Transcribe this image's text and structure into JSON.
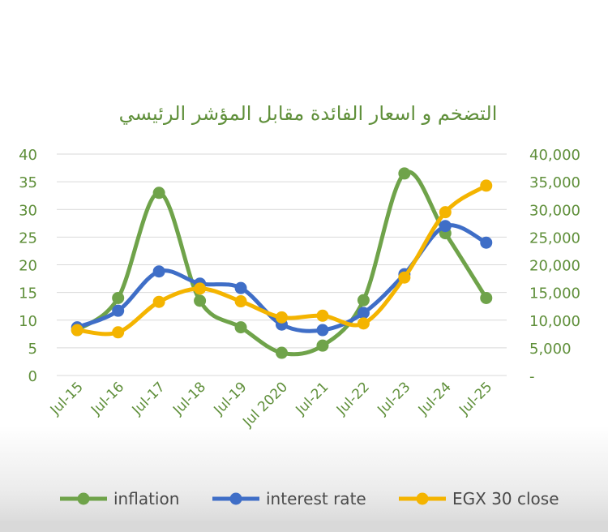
{
  "chart_data": {
    "type": "line",
    "title": "التضخم و اسعار الفائدة مقابل المؤشر الرئيسي",
    "categories": [
      "Jul-15",
      "Jul-16",
      "Jul-17",
      "Jul-18",
      "Jul-19",
      "Jul 2020",
      "Jul-21",
      "Jul-22",
      "Jul-23",
      "Jul-24",
      "Jul-25"
    ],
    "series": [
      {
        "name": "inflation",
        "axis": "left",
        "color": "#6fa34a",
        "values": [
          8.2,
          14,
          33,
          13.5,
          8.7,
          4.1,
          5.4,
          13.6,
          36.5,
          25.7,
          14
        ]
      },
      {
        "name": "interest rate",
        "axis": "left",
        "color": "#3f6ec7",
        "values": [
          8.7,
          11.7,
          18.8,
          16.6,
          15.8,
          9.2,
          8.2,
          11.3,
          18.3,
          27,
          24
        ]
      },
      {
        "name": "EGX 30 close",
        "axis": "right",
        "color": "#f4b400",
        "values": [
          8200,
          7800,
          13300,
          15700,
          13400,
          10500,
          10800,
          9400,
          17700,
          29500,
          34300
        ]
      }
    ],
    "y_left": {
      "min": 0,
      "max": 40,
      "ticks": [
        "0",
        "5",
        "10",
        "15",
        "20",
        "25",
        "30",
        "35",
        "40"
      ]
    },
    "y_right": {
      "min": 0,
      "max": 40000,
      "ticks": [
        "-",
        "5,000",
        "10,000",
        "15,000",
        "20,000",
        "25,000",
        "30,000",
        "35,000",
        "40,000"
      ]
    },
    "grid": true,
    "legend_position": "bottom"
  }
}
